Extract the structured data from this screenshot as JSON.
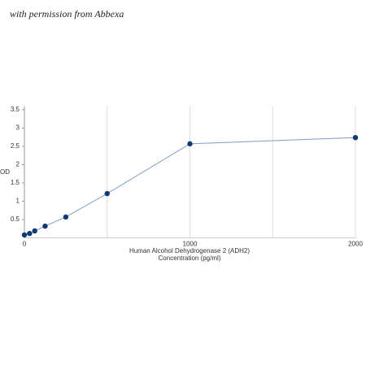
{
  "chart_data": {
    "type": "line",
    "watermark": "with permission from Abbexa",
    "xlabel": [
      "Human Alcohol Dehydrogenase 2 (ADH2)",
      "Concentration (pg/ml)"
    ],
    "ylabel": "OD",
    "x": [
      0,
      31.25,
      62.5,
      125,
      250,
      500,
      1000,
      2000
    ],
    "series": [
      {
        "color": "#7f9cc4",
        "marker_color": "#0d3a73",
        "values": [
          0.08,
          0.12,
          0.19,
          0.32,
          0.57,
          1.21,
          2.57,
          2.74
        ]
      }
    ],
    "xlim": [
      0,
      2000
    ],
    "xticks": [
      0,
      1000,
      2000
    ],
    "xgrid": [
      500,
      1000,
      1500,
      2000
    ],
    "ylim": [
      0,
      3.6
    ],
    "yticks": [
      0.5,
      1,
      1.5,
      2,
      2.5,
      3,
      3.5
    ]
  }
}
